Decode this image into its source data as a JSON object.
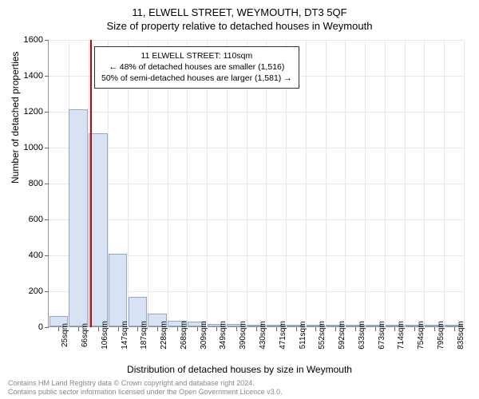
{
  "header": {
    "address": "11, ELWELL STREET, WEYMOUTH, DT3 5QF",
    "subtitle": "Size of property relative to detached houses in Weymouth"
  },
  "chart": {
    "type": "histogram",
    "ylabel": "Number of detached properties",
    "xlabel": "Distribution of detached houses by size in Weymouth",
    "ylim": [
      0,
      1600
    ],
    "ytick_step": 200,
    "yticks": [
      0,
      200,
      400,
      600,
      800,
      1000,
      1200,
      1400,
      1600
    ],
    "xtick_labels": [
      "25sqm",
      "66sqm",
      "106sqm",
      "147sqm",
      "187sqm",
      "228sqm",
      "268sqm",
      "309sqm",
      "349sqm",
      "390sqm",
      "430sqm",
      "471sqm",
      "511sqm",
      "552sqm",
      "592sqm",
      "633sqm",
      "673sqm",
      "714sqm",
      "754sqm",
      "795sqm",
      "835sqm"
    ],
    "bars": [
      {
        "value": 60
      },
      {
        "value": 1210
      },
      {
        "value": 1075
      },
      {
        "value": 405
      },
      {
        "value": 165
      },
      {
        "value": 70
      },
      {
        "value": 30
      },
      {
        "value": 25
      },
      {
        "value": 15
      },
      {
        "value": 15
      },
      {
        "value": 3
      },
      {
        "value": 2
      },
      {
        "value": 2
      },
      {
        "value": 2
      },
      {
        "value": 1
      },
      {
        "value": 1
      },
      {
        "value": 1
      },
      {
        "value": 1
      },
      {
        "value": 1
      },
      {
        "value": 1
      },
      {
        "value": 1
      }
    ],
    "bar_fill": "#d8e2f2",
    "bar_border": "#8fa8d0",
    "bar_width": 0.95,
    "marker_color": "#cc0000",
    "marker_position_index": 2.1,
    "background_color": "#ffffff",
    "grid_color": "#e8e8e8",
    "axis_color": "#999999",
    "title_fontsize": 13,
    "label_fontsize": 12,
    "tick_fontsize": 11
  },
  "info_box": {
    "line1": "11 ELWELL STREET: 110sqm",
    "line2": "← 48% of detached houses are smaller (1,516)",
    "line3": "50% of semi-detached houses are larger (1,581) →"
  },
  "footer": {
    "line1": "Contains HM Land Registry data © Crown copyright and database right 2024.",
    "line2": "Contains public sector information licensed under the Open Government Licence v3.0."
  }
}
